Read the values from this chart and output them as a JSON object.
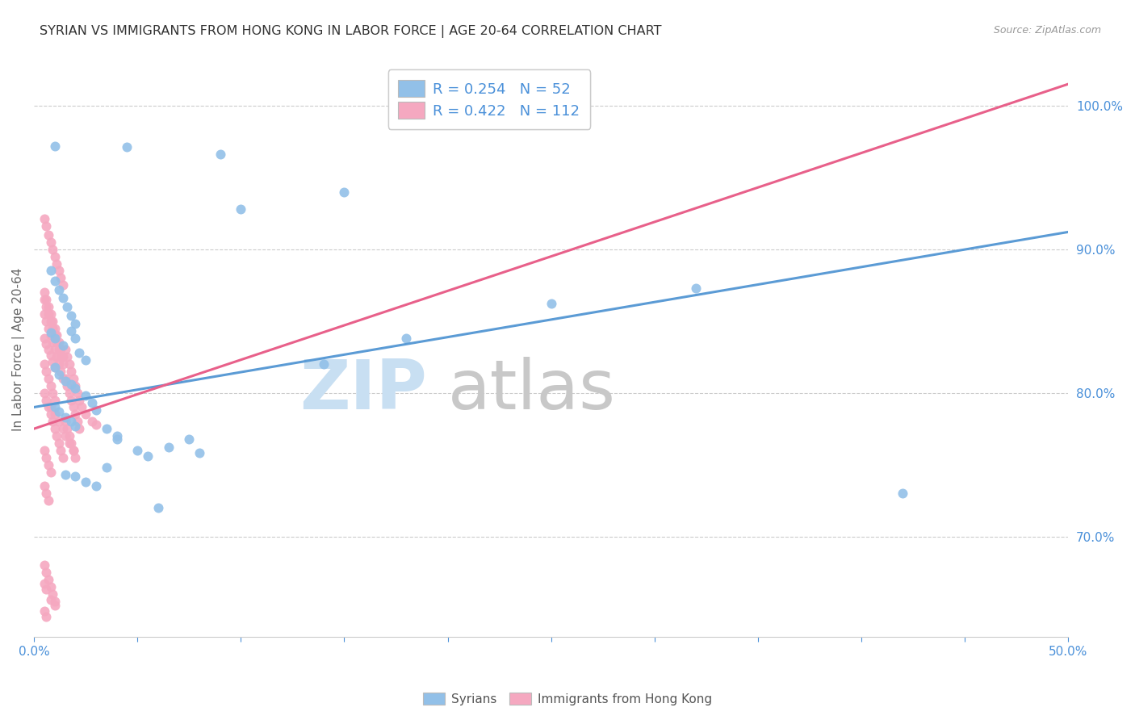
{
  "title": "SYRIAN VS IMMIGRANTS FROM HONG KONG IN LABOR FORCE | AGE 20-64 CORRELATION CHART",
  "source": "Source: ZipAtlas.com",
  "ylabel": "In Labor Force | Age 20-64",
  "xlim": [
    0.0,
    0.5
  ],
  "ylim": [
    0.63,
    1.03
  ],
  "ytick_vals": [
    0.7,
    0.8,
    0.9,
    1.0
  ],
  "ytick_labels": [
    "70.0%",
    "80.0%",
    "90.0%",
    "100.0%"
  ],
  "xtick_vals": [
    0.0,
    0.05,
    0.1,
    0.15,
    0.2,
    0.25,
    0.3,
    0.35,
    0.4,
    0.45,
    0.5
  ],
  "xtick_labels": [
    "0.0%",
    "",
    "",
    "",
    "",
    "",
    "",
    "",
    "",
    "",
    "50.0%"
  ],
  "blue_color": "#92c0e8",
  "pink_color": "#f5a8c0",
  "blue_line_color": "#5b9bd5",
  "pink_line_color": "#e8608a",
  "legend_blue_label": "R = 0.254   N = 52",
  "legend_pink_label": "R = 0.422   N = 112",
  "legend_syrians": "Syrians",
  "legend_hk": "Immigrants from Hong Kong",
  "watermark_zip": "ZIP",
  "watermark_atlas": "atlas",
  "blue_scatter_x": [
    0.01,
    0.045,
    0.09,
    0.008,
    0.01,
    0.012,
    0.014,
    0.016,
    0.018,
    0.02,
    0.008,
    0.01,
    0.014,
    0.018,
    0.02,
    0.022,
    0.025,
    0.01,
    0.012,
    0.015,
    0.018,
    0.02,
    0.025,
    0.028,
    0.01,
    0.012,
    0.015,
    0.018,
    0.02,
    0.03,
    0.035,
    0.04,
    0.06,
    0.08,
    0.1,
    0.15,
    0.14,
    0.18,
    0.25,
    0.32,
    0.42,
    0.05,
    0.055,
    0.065,
    0.075,
    0.015,
    0.02,
    0.025,
    0.03,
    0.035,
    0.04
  ],
  "blue_scatter_y": [
    0.972,
    0.971,
    0.966,
    0.885,
    0.878,
    0.872,
    0.866,
    0.86,
    0.854,
    0.848,
    0.842,
    0.838,
    0.833,
    0.843,
    0.838,
    0.828,
    0.823,
    0.818,
    0.813,
    0.808,
    0.806,
    0.803,
    0.798,
    0.793,
    0.79,
    0.787,
    0.783,
    0.78,
    0.777,
    0.788,
    0.775,
    0.768,
    0.72,
    0.758,
    0.928,
    0.94,
    0.82,
    0.838,
    0.862,
    0.873,
    0.73,
    0.76,
    0.756,
    0.762,
    0.768,
    0.743,
    0.742,
    0.738,
    0.735,
    0.748,
    0.77
  ],
  "pink_scatter_x": [
    0.005,
    0.006,
    0.007,
    0.008,
    0.009,
    0.01,
    0.011,
    0.012,
    0.013,
    0.014,
    0.005,
    0.006,
    0.007,
    0.008,
    0.009,
    0.01,
    0.011,
    0.012,
    0.013,
    0.014,
    0.005,
    0.006,
    0.007,
    0.008,
    0.009,
    0.01,
    0.011,
    0.012,
    0.013,
    0.014,
    0.005,
    0.006,
    0.007,
    0.008,
    0.009,
    0.01,
    0.011,
    0.012,
    0.013,
    0.014,
    0.005,
    0.006,
    0.007,
    0.008,
    0.009,
    0.01,
    0.011,
    0.012,
    0.013,
    0.014,
    0.015,
    0.016,
    0.017,
    0.018,
    0.019,
    0.02,
    0.021,
    0.022,
    0.015,
    0.016,
    0.017,
    0.018,
    0.019,
    0.02,
    0.021,
    0.022,
    0.015,
    0.016,
    0.017,
    0.018,
    0.019,
    0.02,
    0.005,
    0.006,
    0.007,
    0.008,
    0.023,
    0.025,
    0.028,
    0.03,
    0.005,
    0.006,
    0.007,
    0.008,
    0.01,
    0.012,
    0.014,
    0.015,
    0.017,
    0.019,
    0.005,
    0.006,
    0.007,
    0.008,
    0.009,
    0.01,
    0.005,
    0.006,
    0.007,
    0.008,
    0.009,
    0.01,
    0.005,
    0.006,
    0.007,
    0.008,
    0.009,
    0.01,
    0.005,
    0.006,
    0.008,
    0.01,
    0.005,
    0.006
  ],
  "pink_scatter_y": [
    0.921,
    0.916,
    0.91,
    0.905,
    0.9,
    0.895,
    0.89,
    0.885,
    0.88,
    0.875,
    0.87,
    0.865,
    0.86,
    0.855,
    0.85,
    0.845,
    0.84,
    0.835,
    0.83,
    0.825,
    0.865,
    0.86,
    0.855,
    0.85,
    0.845,
    0.84,
    0.835,
    0.83,
    0.825,
    0.82,
    0.855,
    0.85,
    0.845,
    0.84,
    0.835,
    0.83,
    0.825,
    0.82,
    0.815,
    0.81,
    0.8,
    0.795,
    0.79,
    0.785,
    0.78,
    0.775,
    0.77,
    0.765,
    0.76,
    0.755,
    0.83,
    0.825,
    0.82,
    0.815,
    0.81,
    0.805,
    0.8,
    0.795,
    0.81,
    0.805,
    0.8,
    0.795,
    0.79,
    0.785,
    0.78,
    0.775,
    0.78,
    0.775,
    0.77,
    0.765,
    0.76,
    0.755,
    0.76,
    0.755,
    0.75,
    0.745,
    0.79,
    0.785,
    0.78,
    0.778,
    0.735,
    0.73,
    0.725,
    0.79,
    0.785,
    0.78,
    0.775,
    0.77,
    0.765,
    0.76,
    0.68,
    0.675,
    0.67,
    0.665,
    0.66,
    0.655,
    0.82,
    0.815,
    0.81,
    0.805,
    0.8,
    0.795,
    0.838,
    0.834,
    0.83,
    0.826,
    0.822,
    0.818,
    0.648,
    0.644,
    0.656,
    0.652,
    0.667,
    0.663
  ],
  "blue_line_x0": 0.0,
  "blue_line_x1": 0.5,
  "blue_line_y0": 0.79,
  "blue_line_y1": 0.912,
  "pink_line_x0": 0.0,
  "pink_line_x1": 0.5,
  "pink_line_y0": 0.775,
  "pink_line_y1": 1.015,
  "title_fontsize": 11.5,
  "axis_label_fontsize": 11,
  "tick_fontsize": 11,
  "legend_fontsize": 13,
  "watermark_fontsize_zip": 62,
  "watermark_fontsize_atlas": 62,
  "watermark_color_zip": "#c8dff2",
  "watermark_color_atlas": "#c8c8c8",
  "axis_color": "#4a90d9",
  "tick_color": "#4a90d9",
  "grid_color": "#cccccc",
  "background_color": "#ffffff"
}
